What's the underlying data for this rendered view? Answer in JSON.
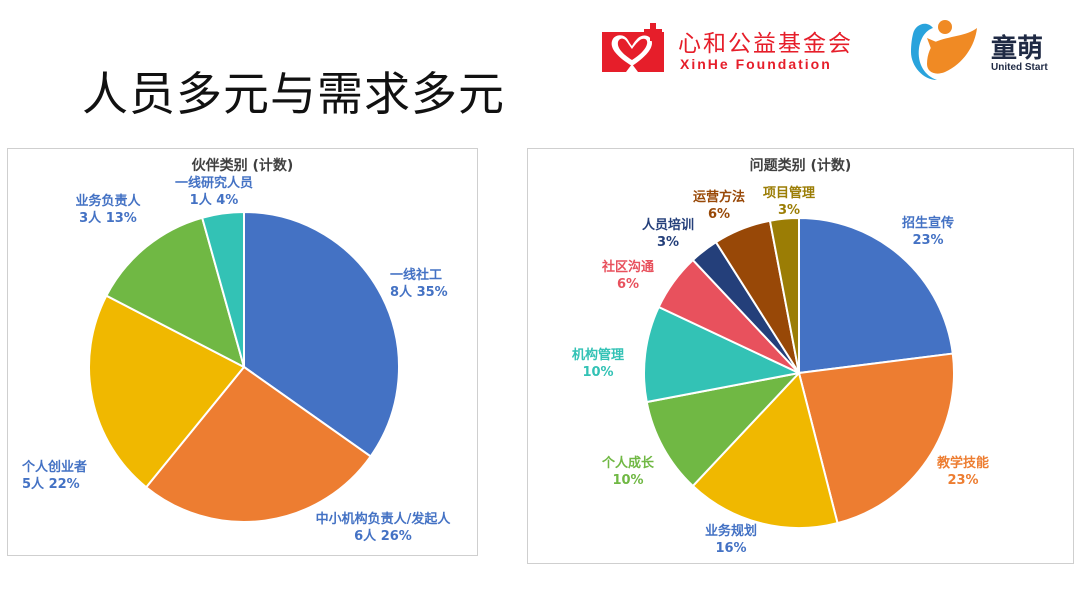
{
  "slide": {
    "title": "人员多元与需求多元"
  },
  "logos": {
    "xinhe": {
      "name": "心和公益基金会",
      "sub": "XinHe Foundation",
      "color": "#e61e2a"
    },
    "tongmeng": {
      "name": "童萌",
      "sub": "United Start"
    }
  },
  "chart_data": [
    {
      "type": "pie",
      "title": "伙伴类别 (计数)",
      "categories": [
        "一线社工",
        "中小机构负责人/发起人",
        "个人创业者",
        "业务负责人",
        "一线研究人员"
      ],
      "values": [
        8,
        6,
        5,
        3,
        1
      ],
      "percent_labels": [
        "35%",
        "26%",
        "22%",
        "13%",
        "4%"
      ],
      "count_labels": [
        "8人",
        "6人",
        "5人",
        "3人",
        "1人"
      ],
      "colors": [
        "#4472c4",
        "#ed7d31",
        "#f0b800",
        "#70b844",
        "#33c2b5"
      ]
    },
    {
      "type": "pie",
      "title": "问题类别 (计数)",
      "categories": [
        "招生宣传",
        "教学技能",
        "业务规划",
        "个人成长",
        "机构管理",
        "社区沟通",
        "人员培训",
        "运营方法",
        "项目管理"
      ],
      "values": [
        23,
        23,
        16,
        10,
        10,
        6,
        3,
        6,
        3
      ],
      "percent_labels": [
        "23%",
        "23%",
        "16%",
        "10%",
        "10%",
        "6%",
        "3%",
        "6%",
        "3%"
      ],
      "colors": [
        "#4472c4",
        "#ed7d31",
        "#f0b800",
        "#70b844",
        "#33c2b5",
        "#e8515d",
        "#243f7a",
        "#984807",
        "#9b7d05"
      ],
      "label_colors": [
        "#4472c4",
        "#ed7d31",
        "#4472c4",
        "#70b844",
        "#33c2b5",
        "#e8515d",
        "#243f7a",
        "#984807",
        "#9b7d05"
      ]
    }
  ]
}
